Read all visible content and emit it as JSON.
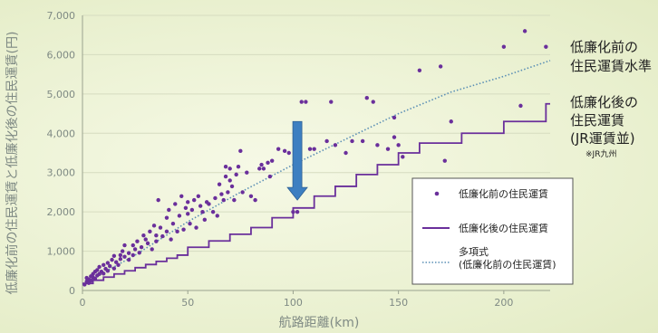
{
  "chart_data": {
    "type": "scatter",
    "xlabel": "航路距離(km)",
    "ylabel": "低廉化前の住民運賃と低廉化後の住民運賃(円)",
    "xlim": [
      0,
      222
    ],
    "ylim": [
      0,
      7000
    ],
    "x_ticks": [
      "0",
      "50",
      "100",
      "150",
      "200"
    ],
    "y_ticks": [
      "0",
      "1,000",
      "2,000",
      "3,000",
      "4,000",
      "5,000",
      "6,000",
      "7,000"
    ],
    "grid": true,
    "annotations": {
      "before_line1": "低廉化前の",
      "before_line2": "住民運賃水準",
      "after_line1": "低廉化後の",
      "after_line2": "住民運賃",
      "after_line3": "(JR運賃並)",
      "after_note": "※JR九州"
    },
    "legend": [
      {
        "label": "低廉化前の住民運賃",
        "style": "point",
        "color": "#6a2f9b"
      },
      {
        "label": "低廉化後の住民運賃",
        "style": "step-line",
        "color": "#6a2f9b"
      },
      {
        "label": "多項式",
        "label2": "(低廉化前の住民運賃)",
        "style": "dotted-line",
        "color": "#5b8fb5"
      }
    ],
    "scatter_before": [
      [
        1,
        150
      ],
      [
        2,
        230
      ],
      [
        2,
        320
      ],
      [
        3,
        190
      ],
      [
        3,
        280
      ],
      [
        4,
        250
      ],
      [
        4,
        360
      ],
      [
        5,
        330
      ],
      [
        5,
        420
      ],
      [
        6,
        300
      ],
      [
        6,
        480
      ],
      [
        7,
        380
      ],
      [
        7,
        520
      ],
      [
        8,
        420
      ],
      [
        8,
        600
      ],
      [
        9,
        480
      ],
      [
        10,
        430
      ],
      [
        10,
        650
      ],
      [
        11,
        550
      ],
      [
        12,
        700
      ],
      [
        12,
        500
      ],
      [
        13,
        620
      ],
      [
        14,
        780
      ],
      [
        15,
        560
      ],
      [
        15,
        880
      ],
      [
        16,
        720
      ],
      [
        17,
        650
      ],
      [
        18,
        900
      ],
      [
        18,
        800
      ],
      [
        19,
        1000
      ],
      [
        20,
        860
      ],
      [
        20,
        1150
      ],
      [
        22,
        780
      ],
      [
        22,
        950
      ],
      [
        24,
        900
      ],
      [
        24,
        1150
      ],
      [
        25,
        1050
      ],
      [
        26,
        1250
      ],
      [
        27,
        960
      ],
      [
        28,
        1100
      ],
      [
        29,
        1400
      ],
      [
        30,
        1300
      ],
      [
        31,
        1200
      ],
      [
        32,
        1500
      ],
      [
        33,
        1050
      ],
      [
        34,
        1650
      ],
      [
        35,
        1250
      ],
      [
        35,
        1400
      ],
      [
        36,
        2300
      ],
      [
        37,
        1600
      ],
      [
        38,
        1380
      ],
      [
        40,
        1500
      ],
      [
        40,
        1850
      ],
      [
        41,
        2050
      ],
      [
        42,
        1300
      ],
      [
        43,
        1700
      ],
      [
        44,
        2200
      ],
      [
        45,
        1500
      ],
      [
        46,
        1900
      ],
      [
        47,
        2400
      ],
      [
        48,
        1550
      ],
      [
        49,
        2100
      ],
      [
        50,
        1950
      ],
      [
        50,
        2250
      ],
      [
        51,
        1700
      ],
      [
        52,
        2050
      ],
      [
        53,
        2300
      ],
      [
        54,
        1600
      ],
      [
        55,
        2400
      ],
      [
        56,
        2150
      ],
      [
        57,
        2000
      ],
      [
        58,
        1800
      ],
      [
        59,
        2250
      ],
      [
        60,
        2200
      ],
      [
        62,
        2000
      ],
      [
        63,
        2350
      ],
      [
        64,
        1900
      ],
      [
        65,
        2700
      ],
      [
        66,
        2450
      ],
      [
        67,
        2300
      ],
      [
        68,
        3150
      ],
      [
        68,
        2900
      ],
      [
        69,
        2500
      ],
      [
        70,
        2800
      ],
      [
        70,
        3100
      ],
      [
        71,
        2650
      ],
      [
        72,
        2300
      ],
      [
        73,
        2950
      ],
      [
        74,
        3150
      ],
      [
        75,
        3550
      ],
      [
        76,
        2500
      ],
      [
        78,
        3000
      ],
      [
        80,
        2400
      ],
      [
        82,
        2300
      ],
      [
        84,
        3100
      ],
      [
        85,
        3200
      ],
      [
        86,
        3100
      ],
      [
        88,
        3250
      ],
      [
        89,
        2900
      ],
      [
        90,
        3300
      ],
      [
        93,
        3600
      ],
      [
        96,
        3550
      ],
      [
        98,
        3500
      ],
      [
        100,
        2000
      ],
      [
        102,
        2000
      ],
      [
        104,
        4800
      ],
      [
        106,
        4800
      ],
      [
        108,
        3600
      ],
      [
        110,
        3600
      ],
      [
        116,
        3800
      ],
      [
        118,
        4800
      ],
      [
        120,
        3700
      ],
      [
        125,
        3500
      ],
      [
        128,
        3800
      ],
      [
        133,
        3800
      ],
      [
        135,
        4900
      ],
      [
        138,
        4800
      ],
      [
        140,
        3700
      ],
      [
        145,
        3600
      ],
      [
        148,
        3900
      ],
      [
        148,
        4400
      ],
      [
        150,
        3700
      ],
      [
        152,
        3400
      ],
      [
        160,
        5600
      ],
      [
        170,
        5700
      ],
      [
        172,
        3300
      ],
      [
        175,
        4300
      ],
      [
        200,
        6200
      ],
      [
        208,
        4700
      ],
      [
        210,
        6600
      ],
      [
        220,
        6200
      ]
    ],
    "step_after": [
      [
        0,
        180
      ],
      [
        5,
        180
      ],
      [
        5,
        260
      ],
      [
        10,
        260
      ],
      [
        10,
        340
      ],
      [
        15,
        340
      ],
      [
        15,
        420
      ],
      [
        20,
        420
      ],
      [
        20,
        500
      ],
      [
        25,
        500
      ],
      [
        25,
        580
      ],
      [
        30,
        580
      ],
      [
        30,
        660
      ],
      [
        35,
        660
      ],
      [
        35,
        740
      ],
      [
        40,
        740
      ],
      [
        40,
        820
      ],
      [
        45,
        820
      ],
      [
        45,
        900
      ],
      [
        50,
        900
      ],
      [
        50,
        1100
      ],
      [
        60,
        1100
      ],
      [
        60,
        1260
      ],
      [
        70,
        1260
      ],
      [
        70,
        1430
      ],
      [
        80,
        1430
      ],
      [
        80,
        1600
      ],
      [
        90,
        1600
      ],
      [
        90,
        1850
      ],
      [
        100,
        1850
      ],
      [
        100,
        2100
      ],
      [
        110,
        2100
      ],
      [
        110,
        2400
      ],
      [
        120,
        2400
      ],
      [
        120,
        2650
      ],
      [
        130,
        2650
      ],
      [
        130,
        2950
      ],
      [
        140,
        2950
      ],
      [
        140,
        3200
      ],
      [
        150,
        3200
      ],
      [
        150,
        3500
      ],
      [
        160,
        3500
      ],
      [
        160,
        3750
      ],
      [
        180,
        3750
      ],
      [
        180,
        4000
      ],
      [
        200,
        4000
      ],
      [
        200,
        4300
      ],
      [
        220,
        4300
      ],
      [
        220,
        4750
      ],
      [
        222,
        4750
      ]
    ],
    "trend_before": [
      [
        0,
        150
      ],
      [
        25,
        900
      ],
      [
        50,
        1750
      ],
      [
        75,
        2500
      ],
      [
        100,
        3200
      ],
      [
        125,
        3850
      ],
      [
        150,
        4500
      ],
      [
        175,
        5050
      ],
      [
        200,
        5450
      ],
      [
        222,
        5850
      ]
    ],
    "arrow": {
      "x": 102,
      "y_from": 4300,
      "y_to": 2300,
      "color": "#3d7fc1"
    }
  }
}
